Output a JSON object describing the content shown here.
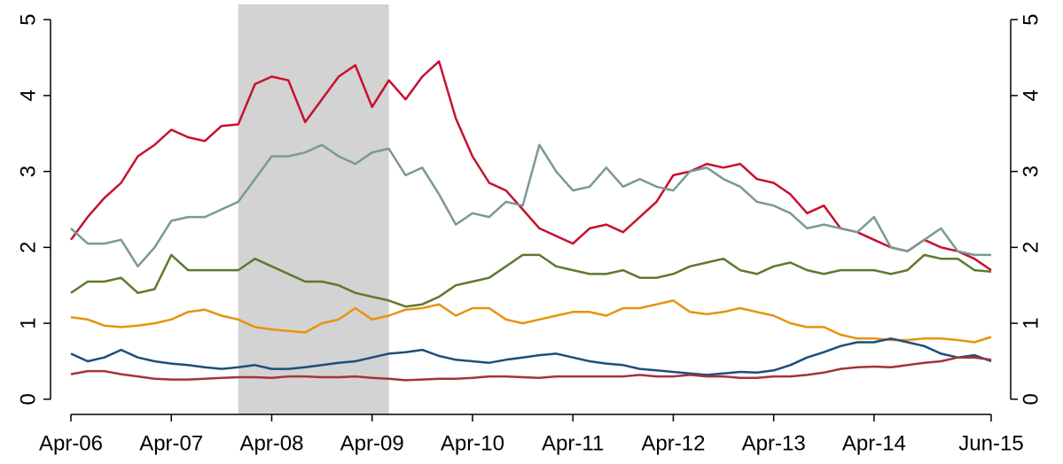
{
  "chart_data": {
    "type": "line",
    "x": [
      "Apr-06",
      "Jun-06",
      "Aug-06",
      "Oct-06",
      "Dec-06",
      "Feb-07",
      "Apr-07",
      "Jun-07",
      "Aug-07",
      "Oct-07",
      "Dec-07",
      "Feb-08",
      "Apr-08",
      "Jun-08",
      "Aug-08",
      "Oct-08",
      "Dec-08",
      "Feb-09",
      "Apr-09",
      "Jun-09",
      "Aug-09",
      "Oct-09",
      "Dec-09",
      "Feb-10",
      "Apr-10",
      "Jun-10",
      "Aug-10",
      "Oct-10",
      "Dec-10",
      "Feb-11",
      "Apr-11",
      "Jun-11",
      "Aug-11",
      "Oct-11",
      "Dec-11",
      "Feb-12",
      "Apr-12",
      "Jun-12",
      "Aug-12",
      "Oct-12",
      "Dec-12",
      "Feb-13",
      "Apr-13",
      "Jun-13",
      "Aug-13",
      "Oct-13",
      "Dec-13",
      "Feb-14",
      "Apr-14",
      "Jun-14",
      "Aug-14",
      "Oct-14",
      "Dec-14",
      "Feb-15",
      "Apr-15",
      "Jun-15"
    ],
    "xticks": [
      "Apr-06",
      "Apr-07",
      "Apr-08",
      "Apr-09",
      "Apr-10",
      "Apr-11",
      "Apr-12",
      "Apr-13",
      "Apr-14",
      "Jun-15"
    ],
    "shaded_range": [
      "Dec-07",
      "Jun-09"
    ],
    "shade_color": "#d3d3d3",
    "ylim": [
      -0.2,
      5.2
    ],
    "yticks": [
      0,
      1,
      2,
      3,
      4,
      5
    ],
    "y2lim": [
      -0.2,
      5.2
    ],
    "y2ticks": [
      0,
      1,
      2,
      3,
      4,
      5
    ],
    "grid": false,
    "series": [
      {
        "color": "#c8102e",
        "values": [
          2.1,
          2.4,
          2.65,
          2.85,
          3.2,
          3.35,
          3.55,
          3.45,
          3.4,
          3.6,
          3.62,
          4.15,
          4.25,
          4.2,
          3.65,
          3.95,
          4.25,
          4.4,
          3.85,
          4.2,
          3.95,
          4.25,
          4.45,
          3.7,
          3.2,
          2.85,
          2.75,
          2.5,
          2.25,
          2.15,
          2.05,
          2.25,
          2.3,
          2.2,
          2.4,
          2.6,
          2.95,
          3.0,
          3.1,
          3.05,
          3.1,
          2.9,
          2.85,
          2.7,
          2.45,
          2.55,
          2.25,
          2.2,
          2.1,
          2.0,
          1.95,
          2.1,
          2.0,
          1.95,
          1.85,
          1.7
        ]
      },
      {
        "color": "#7a9a92",
        "values": [
          2.25,
          2.05,
          2.05,
          2.1,
          1.75,
          2.0,
          2.35,
          2.4,
          2.4,
          2.5,
          2.6,
          2.9,
          3.2,
          3.2,
          3.25,
          3.35,
          3.2,
          3.1,
          3.25,
          3.3,
          2.95,
          3.05,
          2.7,
          2.3,
          2.45,
          2.4,
          2.6,
          2.55,
          3.35,
          3.0,
          2.75,
          2.8,
          3.05,
          2.8,
          2.9,
          2.8,
          2.75,
          3.0,
          3.05,
          2.9,
          2.8,
          2.6,
          2.55,
          2.45,
          2.25,
          2.3,
          2.25,
          2.2,
          2.4,
          2.0,
          1.95,
          2.1,
          2.25,
          1.95,
          1.9,
          1.9
        ]
      },
      {
        "color": "#5d7a2e",
        "values": [
          1.4,
          1.55,
          1.55,
          1.6,
          1.4,
          1.45,
          1.9,
          1.7,
          1.7,
          1.7,
          1.7,
          1.85,
          1.75,
          1.65,
          1.55,
          1.55,
          1.5,
          1.4,
          1.35,
          1.3,
          1.22,
          1.25,
          1.35,
          1.5,
          1.55,
          1.6,
          1.75,
          1.9,
          1.9,
          1.75,
          1.7,
          1.65,
          1.65,
          1.7,
          1.6,
          1.6,
          1.65,
          1.75,
          1.8,
          1.85,
          1.7,
          1.65,
          1.75,
          1.8,
          1.7,
          1.65,
          1.7,
          1.7,
          1.7,
          1.65,
          1.7,
          1.9,
          1.85,
          1.85,
          1.7,
          1.68
        ]
      },
      {
        "color": "#e8920f",
        "values": [
          1.08,
          1.05,
          0.97,
          0.95,
          0.97,
          1.0,
          1.05,
          1.15,
          1.18,
          1.1,
          1.05,
          0.95,
          0.92,
          0.9,
          0.88,
          1.0,
          1.05,
          1.2,
          1.05,
          1.1,
          1.18,
          1.2,
          1.25,
          1.1,
          1.2,
          1.2,
          1.05,
          1.0,
          1.05,
          1.1,
          1.15,
          1.15,
          1.1,
          1.2,
          1.2,
          1.25,
          1.3,
          1.15,
          1.12,
          1.15,
          1.2,
          1.15,
          1.1,
          1.0,
          0.95,
          0.95,
          0.85,
          0.8,
          0.8,
          0.78,
          0.78,
          0.8,
          0.8,
          0.78,
          0.75,
          0.82
        ]
      },
      {
        "color": "#1f4e79",
        "values": [
          0.6,
          0.5,
          0.55,
          0.65,
          0.55,
          0.5,
          0.47,
          0.45,
          0.42,
          0.4,
          0.42,
          0.45,
          0.4,
          0.4,
          0.42,
          0.45,
          0.48,
          0.5,
          0.55,
          0.6,
          0.62,
          0.65,
          0.57,
          0.52,
          0.5,
          0.48,
          0.52,
          0.55,
          0.58,
          0.6,
          0.55,
          0.5,
          0.47,
          0.45,
          0.4,
          0.38,
          0.36,
          0.34,
          0.32,
          0.34,
          0.36,
          0.35,
          0.38,
          0.45,
          0.55,
          0.62,
          0.7,
          0.75,
          0.75,
          0.8,
          0.75,
          0.7,
          0.6,
          0.55,
          0.58,
          0.5
        ]
      },
      {
        "color": "#a3343b",
        "values": [
          0.33,
          0.37,
          0.37,
          0.33,
          0.3,
          0.27,
          0.26,
          0.26,
          0.27,
          0.28,
          0.29,
          0.29,
          0.28,
          0.3,
          0.3,
          0.29,
          0.29,
          0.3,
          0.28,
          0.27,
          0.25,
          0.26,
          0.27,
          0.27,
          0.28,
          0.3,
          0.3,
          0.29,
          0.28,
          0.3,
          0.3,
          0.3,
          0.3,
          0.3,
          0.32,
          0.3,
          0.3,
          0.32,
          0.3,
          0.3,
          0.28,
          0.28,
          0.3,
          0.3,
          0.32,
          0.35,
          0.4,
          0.42,
          0.43,
          0.42,
          0.45,
          0.48,
          0.5,
          0.55,
          0.55,
          0.52
        ]
      }
    ]
  }
}
